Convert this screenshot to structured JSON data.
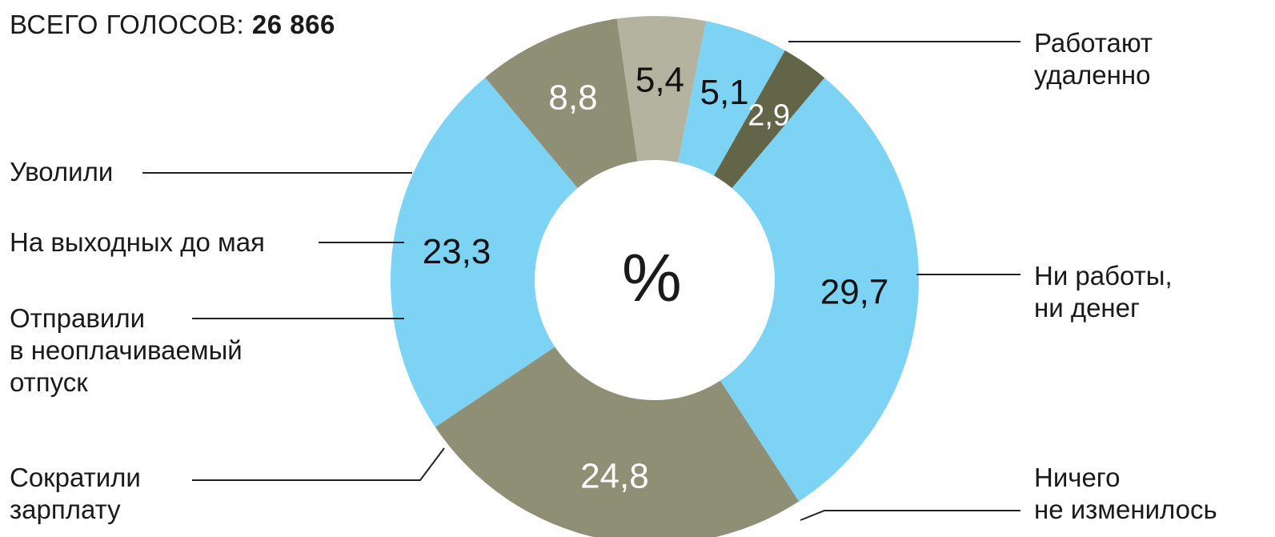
{
  "header": {
    "total_label": "ВСЕГО ГОЛОСОВ:",
    "total_value": "26 866"
  },
  "center_label": "%",
  "chart_data": {
    "type": "pie",
    "donut": true,
    "title": "",
    "slices": [
      {
        "label": "Работают удаленно",
        "value": 29.7,
        "value_text": "29,7",
        "color": "#7dd3f3",
        "text_color": "#111111"
      },
      {
        "label": "Ни работы, ни денег",
        "value": 24.8,
        "value_text": "24,8",
        "color": "#8f8f76",
        "text_color": "#ffffff"
      },
      {
        "label": "Ничего не изменилось",
        "value": 23.3,
        "value_text": "23,3",
        "color": "#7dd3f3",
        "text_color": "#111111"
      },
      {
        "label": "Сократили зарплату",
        "value": 8.8,
        "value_text": "8,8",
        "color": "#8f8f76",
        "text_color": "#ffffff"
      },
      {
        "label": "Отправили в неоплачиваемый отпуск",
        "value": 5.4,
        "value_text": "5,4",
        "color": "#b3b39f",
        "text_color": "#111111"
      },
      {
        "label": "На выходных до мая",
        "value": 5.1,
        "value_text": "5,1",
        "color": "#7dd3f3",
        "text_color": "#111111"
      },
      {
        "label": "Уволили",
        "value": 2.9,
        "value_text": "2,9",
        "color": "#626547",
        "text_color": "#ffffff"
      }
    ]
  },
  "labels": {
    "remote": "Работают\nудаленно",
    "no_work": "Ни работы,\nни денег",
    "unchanged": "Ничего\nне изменилось",
    "salary_cut": "Сократили\nзарплату",
    "unpaid_leave": "Отправили\nв неоплачиваемый\nотпуск",
    "holidays": "На выходных до мая",
    "fired": "Уволили"
  }
}
